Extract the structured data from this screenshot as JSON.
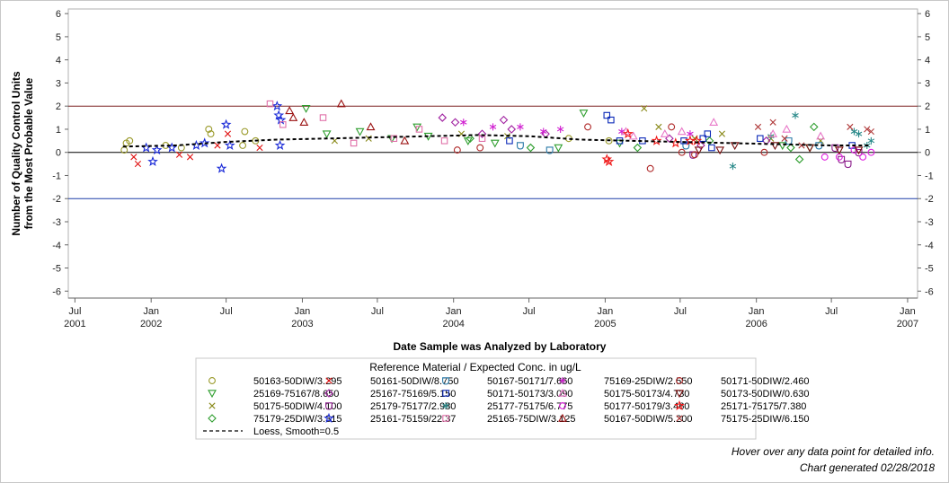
{
  "chart_data": {
    "type": "scatter",
    "ylabel_lines": [
      "Number of Quality Control Units",
      "from the Most Probable Value"
    ],
    "xlabel": "Date Sample was Analyzed by Laboratory",
    "ylim": [
      -6.3,
      6.2
    ],
    "xlim": [
      "2001-06-15",
      "2007-01-25"
    ],
    "y_ticks": [
      6,
      5,
      4,
      3,
      2,
      1,
      0,
      -1,
      -2,
      -3,
      -4,
      -5,
      -6
    ],
    "x_ticks": [
      {
        "date": "2001-07-01",
        "line1": "Jul",
        "line2": "2001"
      },
      {
        "date": "2002-01-01",
        "line1": "Jan",
        "line2": "2002"
      },
      {
        "date": "2002-07-01",
        "line1": "Jul",
        "line2": ""
      },
      {
        "date": "2003-01-01",
        "line1": "Jan",
        "line2": "2003"
      },
      {
        "date": "2003-07-01",
        "line1": "Jul",
        "line2": ""
      },
      {
        "date": "2004-01-01",
        "line1": "Jan",
        "line2": "2004"
      },
      {
        "date": "2004-07-01",
        "line1": "Jul",
        "line2": ""
      },
      {
        "date": "2005-01-01",
        "line1": "Jan",
        "line2": "2005"
      },
      {
        "date": "2005-07-01",
        "line1": "Jul",
        "line2": ""
      },
      {
        "date": "2006-01-01",
        "line1": "Jan",
        "line2": "2006"
      },
      {
        "date": "2006-07-01",
        "line1": "Jul",
        "line2": ""
      },
      {
        "date": "2007-01-01",
        "line1": "Jan",
        "line2": "2007"
      }
    ],
    "reference_lines": [
      {
        "y": 2,
        "color": "#7a1f1f"
      },
      {
        "y": 0,
        "color": "#000000"
      },
      {
        "y": -2,
        "color": "#1f3fa8"
      }
    ],
    "grid": false,
    "legend_placement": "bottom",
    "legend_title": "Reference Material / Expected Conc. in ug/L",
    "series": [
      {
        "name": "50163-50DIW/3.295",
        "marker": "circle",
        "color": "#9a9a2a",
        "points": [
          [
            "2001-10-28",
            0.1
          ],
          [
            "2001-11-02",
            0.4
          ],
          [
            "2001-11-10",
            0.5
          ],
          [
            "2002-02-05",
            0.3
          ],
          [
            "2002-03-15",
            0.2
          ],
          [
            "2002-05-20",
            1.0
          ],
          [
            "2002-05-25",
            0.8
          ],
          [
            "2002-08-10",
            0.3
          ],
          [
            "2002-08-15",
            0.9
          ],
          [
            "2002-09-10",
            0.5
          ],
          [
            "2004-10-05",
            0.6
          ],
          [
            "2005-01-10",
            0.5
          ]
        ]
      },
      {
        "name": "25169-75167/8.650",
        "marker": "triangle-down",
        "color": "#2e9e2e",
        "points": [
          [
            "2003-01-10",
            1.9
          ],
          [
            "2003-03-01",
            0.8
          ],
          [
            "2003-05-20",
            0.9
          ],
          [
            "2003-08-05",
            0.6
          ],
          [
            "2003-10-05",
            1.1
          ],
          [
            "2003-11-01",
            0.7
          ],
          [
            "2004-02-05",
            0.5
          ],
          [
            "2004-04-10",
            0.4
          ],
          [
            "2004-09-10",
            0.2
          ],
          [
            "2004-11-10",
            1.7
          ],
          [
            "2005-02-05",
            0.4
          ],
          [
            "2006-03-05",
            0.3
          ],
          [
            "2006-05-10",
            0.2
          ]
        ]
      },
      {
        "name": "50175-50DIW/4.100",
        "marker": "x",
        "color": "#8a8a1a",
        "points": [
          [
            "2003-03-20",
            0.5
          ],
          [
            "2003-06-10",
            0.6
          ],
          [
            "2004-01-20",
            0.8
          ],
          [
            "2004-05-10",
            0.7
          ],
          [
            "2005-04-05",
            1.9
          ],
          [
            "2005-05-10",
            1.1
          ],
          [
            "2005-08-05",
            0.6
          ],
          [
            "2005-10-10",
            0.8
          ],
          [
            "2006-02-05",
            0.6
          ],
          [
            "2006-06-05",
            0.5
          ]
        ]
      },
      {
        "name": "75179-25DIW/3.315",
        "marker": "diamond",
        "color": "#2e9e2e",
        "points": [
          [
            "2004-02-10",
            0.6
          ],
          [
            "2004-07-05",
            0.2
          ],
          [
            "2005-03-20",
            0.2
          ],
          [
            "2005-09-10",
            0.5
          ],
          [
            "2006-03-25",
            0.2
          ],
          [
            "2006-04-15",
            -0.3
          ],
          [
            "2006-05-20",
            1.1
          ]
        ]
      },
      {
        "name": "50161-50DIW/8.750",
        "marker": "x",
        "color": "#e01010",
        "points": [
          [
            "2001-11-20",
            -0.2
          ],
          [
            "2001-11-30",
            -0.5
          ],
          [
            "2002-03-10",
            -0.1
          ],
          [
            "2002-04-05",
            -0.2
          ],
          [
            "2002-06-10",
            0.3
          ],
          [
            "2002-07-05",
            0.8
          ],
          [
            "2002-09-20",
            0.2
          ]
        ]
      },
      {
        "name": "25167-75169/5.150",
        "marker": "diamond",
        "color": "#a020a0",
        "points": [
          [
            "2003-12-05",
            1.5
          ],
          [
            "2004-01-05",
            1.3
          ],
          [
            "2004-03-10",
            0.8
          ],
          [
            "2004-05-01",
            1.4
          ],
          [
            "2004-05-20",
            1.0
          ],
          [
            "2004-08-10",
            0.8
          ],
          [
            "2005-06-05",
            0.6
          ],
          [
            "2005-08-20",
            0.3
          ],
          [
            "2006-01-25",
            0.5
          ]
        ]
      },
      {
        "name": "25179-75177/2.980",
        "marker": "shield",
        "color": "#8a1a8a",
        "points": [
          [
            "2005-08-01",
            -0.1
          ],
          [
            "2006-07-10",
            0.2
          ],
          [
            "2006-07-25",
            -0.3
          ],
          [
            "2006-08-10",
            -0.5
          ],
          [
            "2006-09-05",
            0.0
          ]
        ]
      },
      {
        "name": "25161-75159/22.37",
        "marker": "star",
        "color": "#1a2ad8",
        "points": [
          [
            "2001-12-20",
            0.2
          ],
          [
            "2002-01-05",
            -0.4
          ],
          [
            "2002-01-15",
            0.1
          ],
          [
            "2002-02-20",
            0.2
          ],
          [
            "2002-04-20",
            0.3
          ],
          [
            "2002-05-10",
            0.4
          ],
          [
            "2002-06-20",
            -0.7
          ],
          [
            "2002-07-01",
            1.2
          ],
          [
            "2002-07-10",
            0.3
          ],
          [
            "2002-11-01",
            2.0
          ],
          [
            "2002-11-05",
            1.6
          ],
          [
            "2002-11-08",
            0.3
          ],
          [
            "2002-11-10",
            1.4
          ]
        ]
      },
      {
        "name": "50167-50171/7.660",
        "marker": "shield",
        "color": "#2a7aa8",
        "points": [
          [
            "2004-06-10",
            0.3
          ],
          [
            "2004-08-20",
            0.1
          ],
          [
            "2005-07-15",
            0.3
          ],
          [
            "2006-03-20",
            0.5
          ],
          [
            "2006-06-01",
            0.3
          ]
        ]
      },
      {
        "name": "50171-50173/3.090",
        "marker": "square",
        "color": "#0a28b8",
        "points": [
          [
            "2004-05-15",
            0.5
          ],
          [
            "2005-01-05",
            1.6
          ],
          [
            "2005-01-15",
            1.4
          ],
          [
            "2005-02-05",
            0.5
          ],
          [
            "2005-04-01",
            0.5
          ],
          [
            "2005-07-10",
            0.5
          ],
          [
            "2005-08-25",
            0.6
          ],
          [
            "2005-09-05",
            0.8
          ],
          [
            "2005-09-15",
            0.2
          ],
          [
            "2006-01-10",
            0.6
          ],
          [
            "2006-08-20",
            0.3
          ]
        ]
      },
      {
        "name": "25177-75175/6.775",
        "marker": "asterisk",
        "color": "#2a8a8a",
        "points": [
          [
            "2005-11-05",
            -0.6
          ],
          [
            "2006-02-05",
            0.7
          ],
          [
            "2006-04-05",
            1.6
          ],
          [
            "2006-08-25",
            0.9
          ],
          [
            "2006-09-05",
            0.8
          ],
          [
            "2006-09-25",
            0.3
          ],
          [
            "2006-10-05",
            0.5
          ]
        ]
      },
      {
        "name": "25165-75DIW/3.125",
        "marker": "square",
        "color": "#e070a8",
        "points": [
          [
            "2002-10-15",
            2.1
          ],
          [
            "2002-11-15",
            1.2
          ],
          [
            "2003-02-20",
            1.5
          ],
          [
            "2003-05-05",
            0.4
          ],
          [
            "2003-08-10",
            0.6
          ],
          [
            "2003-10-10",
            1.0
          ],
          [
            "2003-12-10",
            0.5
          ],
          [
            "2004-03-10",
            0.6
          ]
        ]
      },
      {
        "name": "75169-25DIW/2.550",
        "marker": "asterisk",
        "color": "#d020d0",
        "points": [
          [
            "2004-01-25",
            1.3
          ],
          [
            "2004-04-05",
            1.1
          ],
          [
            "2004-06-10",
            1.1
          ],
          [
            "2004-08-05",
            0.9
          ],
          [
            "2004-09-15",
            1.0
          ],
          [
            "2005-02-10",
            0.9
          ],
          [
            "2005-07-25",
            0.8
          ]
        ]
      },
      {
        "name": "50175-50173/4.730",
        "marker": "triangle",
        "color": "#e878c8",
        "points": [
          [
            "2005-02-20",
            0.9
          ],
          [
            "2005-03-10",
            0.7
          ],
          [
            "2005-05-25",
            0.8
          ],
          [
            "2005-07-05",
            0.9
          ],
          [
            "2005-09-20",
            1.3
          ],
          [
            "2006-02-10",
            0.8
          ],
          [
            "2006-03-15",
            1.0
          ],
          [
            "2006-06-05",
            0.7
          ]
        ]
      },
      {
        "name": "50177-50179/3.460",
        "marker": "circle",
        "color": "#e020e0",
        "points": [
          [
            "2006-06-15",
            -0.2
          ],
          [
            "2006-07-20",
            -0.2
          ],
          [
            "2006-08-25",
            0.1
          ],
          [
            "2006-09-15",
            -0.2
          ],
          [
            "2006-10-05",
            0.0
          ]
        ]
      },
      {
        "name": "50167-50DIW/5.200",
        "marker": "triangle",
        "color": "#9a1010",
        "points": [
          [
            "2002-12-01",
            1.8
          ],
          [
            "2002-12-10",
            1.5
          ],
          [
            "2003-01-05",
            1.3
          ],
          [
            "2003-04-05",
            2.1
          ],
          [
            "2003-06-15",
            1.1
          ],
          [
            "2003-09-05",
            0.5
          ]
        ]
      },
      {
        "name": "50171-50DIW/2.460",
        "marker": "circle",
        "color": "#b02a2a",
        "points": [
          [
            "2004-01-10",
            0.1
          ],
          [
            "2004-03-05",
            0.2
          ],
          [
            "2004-11-20",
            1.1
          ],
          [
            "2005-04-20",
            -0.7
          ],
          [
            "2005-06-10",
            1.1
          ],
          [
            "2005-07-05",
            0.0
          ],
          [
            "2005-08-05",
            -0.1
          ],
          [
            "2006-01-20",
            0.0
          ]
        ]
      },
      {
        "name": "50173-50DIW/0.630",
        "marker": "triangle-down",
        "color": "#7a1010",
        "points": [
          [
            "2005-08-15",
            0.1
          ],
          [
            "2005-10-05",
            0.1
          ],
          [
            "2005-11-10",
            0.3
          ],
          [
            "2006-02-15",
            0.3
          ],
          [
            "2006-05-10",
            0.2
          ],
          [
            "2006-07-20",
            0.1
          ],
          [
            "2006-09-05",
            0.1
          ]
        ]
      },
      {
        "name": "25171-75175/7.380",
        "marker": "star",
        "color": "#f01818",
        "points": [
          [
            "2005-01-05",
            -0.3
          ],
          [
            "2005-01-10",
            -0.4
          ],
          [
            "2005-02-25",
            0.8
          ],
          [
            "2005-05-05",
            0.5
          ],
          [
            "2005-06-20",
            0.4
          ],
          [
            "2005-07-25",
            0.5
          ],
          [
            "2005-08-10",
            0.5
          ]
        ]
      },
      {
        "name": "75175-25DIW/6.150",
        "marker": "x",
        "color": "#b03a3a",
        "points": [
          [
            "2006-01-05",
            1.1
          ],
          [
            "2006-02-10",
            1.3
          ],
          [
            "2006-03-10",
            0.6
          ],
          [
            "2006-04-20",
            0.3
          ],
          [
            "2006-08-15",
            1.1
          ],
          [
            "2006-09-25",
            1.0
          ],
          [
            "2006-10-05",
            0.9
          ]
        ]
      }
    ],
    "loess": {
      "name": "Loess, Smooth=0.5",
      "points": [
        [
          "2001-10-25",
          0.25
        ],
        [
          "2002-03-01",
          0.3
        ],
        [
          "2002-07-01",
          0.45
        ],
        [
          "2002-11-01",
          0.55
        ],
        [
          "2003-03-01",
          0.6
        ],
        [
          "2003-07-01",
          0.65
        ],
        [
          "2003-11-01",
          0.7
        ],
        [
          "2004-03-01",
          0.75
        ],
        [
          "2004-07-01",
          0.7
        ],
        [
          "2004-11-01",
          0.55
        ],
        [
          "2005-03-01",
          0.5
        ],
        [
          "2005-07-01",
          0.45
        ],
        [
          "2005-11-01",
          0.4
        ],
        [
          "2006-03-01",
          0.35
        ],
        [
          "2006-07-01",
          0.3
        ],
        [
          "2006-10-05",
          0.3
        ]
      ]
    }
  },
  "footer": {
    "hint": "Hover over any data point for detailed info.",
    "generated": "Chart generated 02/28/2018"
  }
}
